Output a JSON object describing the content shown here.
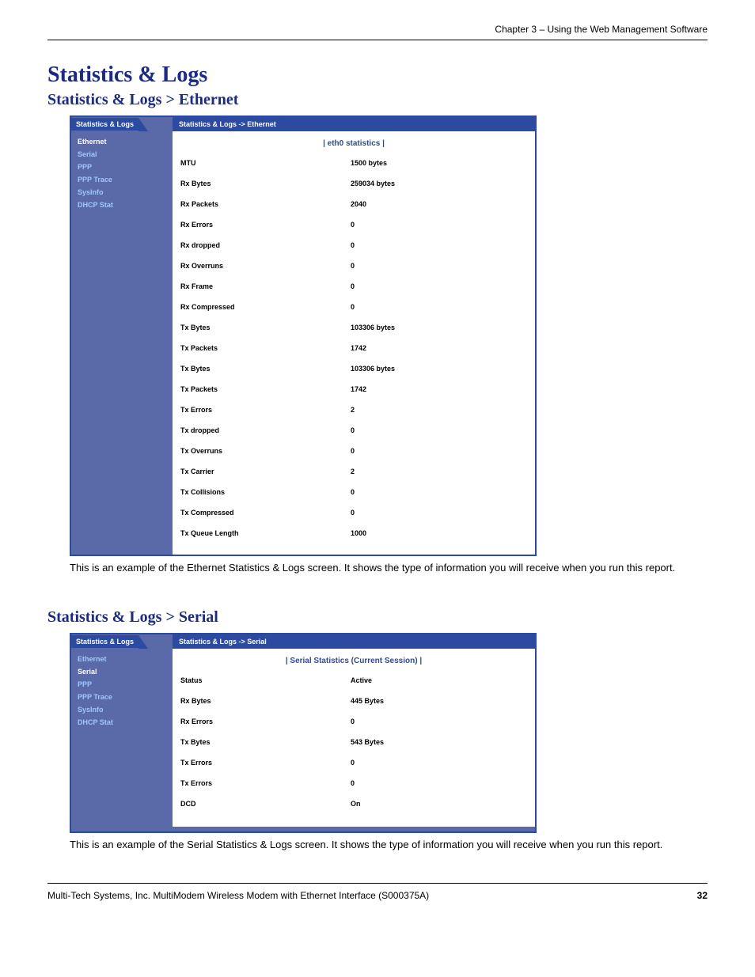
{
  "header": {
    "chapter": "Chapter 3 – Using the Web Management Software"
  },
  "titles": {
    "main": "Statistics & Logs",
    "sub1": "Statistics & Logs > Ethernet",
    "sub2": "Statistics & Logs > Serial"
  },
  "sidebar": {
    "tab": "Statistics & Logs",
    "items": [
      "Ethernet",
      "Serial",
      "PPP",
      "PPP Trace",
      "SysInfo",
      "DHCP Stat"
    ]
  },
  "ethernet_panel": {
    "breadcrumb": "Statistics & Logs  ->  Ethernet",
    "section_title": "| eth0 statistics |",
    "active_index": 0,
    "rows": [
      {
        "label": "MTU",
        "value": "1500 bytes"
      },
      {
        "label": "Rx Bytes",
        "value": "259034 bytes"
      },
      {
        "label": "Rx Packets",
        "value": "2040"
      },
      {
        "label": "Rx Errors",
        "value": "0"
      },
      {
        "label": "Rx dropped",
        "value": "0"
      },
      {
        "label": "Rx Overruns",
        "value": "0"
      },
      {
        "label": "Rx Frame",
        "value": "0"
      },
      {
        "label": "Rx Compressed",
        "value": "0"
      },
      {
        "label": "Tx Bytes",
        "value": "103306 bytes"
      },
      {
        "label": "Tx Packets",
        "value": "1742"
      },
      {
        "label": "Tx Bytes",
        "value": "103306 bytes"
      },
      {
        "label": "Tx Packets",
        "value": "1742"
      },
      {
        "label": "Tx Errors",
        "value": "2"
      },
      {
        "label": "Tx dropped",
        "value": "0"
      },
      {
        "label": "Tx Overruns",
        "value": "0"
      },
      {
        "label": "Tx Carrier",
        "value": "2"
      },
      {
        "label": "Tx Collisions",
        "value": "0"
      },
      {
        "label": "Tx Compressed",
        "value": "0"
      },
      {
        "label": "Tx Queue Length",
        "value": "1000"
      }
    ]
  },
  "serial_panel": {
    "breadcrumb": "Statistics & Logs  ->  Serial",
    "section_title": "| Serial Statistics (Current Session) |",
    "active_index": 1,
    "rows": [
      {
        "label": "Status",
        "value": "Active"
      },
      {
        "label": "Rx Bytes",
        "value": "445 Bytes"
      },
      {
        "label": "Rx Errors",
        "value": "0"
      },
      {
        "label": "Tx Bytes",
        "value": "543 Bytes"
      },
      {
        "label": "Tx Errors",
        "value": "0"
      },
      {
        "label": "Tx Errors",
        "value": "0"
      },
      {
        "label": "DCD",
        "value": "On"
      }
    ]
  },
  "captions": {
    "ethernet": "This is an example of the Ethernet Statistics & Logs screen. It shows the type of information you will receive when you run this report.",
    "serial": "This is an example of the Serial Statistics & Logs screen. It shows the type of information you will receive when you run this report."
  },
  "footer": {
    "text": "Multi-Tech Systems, Inc. MultiModem Wireless Modem with Ethernet Interface (S000375A)",
    "page": "32"
  },
  "colors": {
    "heading": "#1a2a8a",
    "panel_border": "#2b4aa0",
    "sidebar_bg": "#5a6aa8",
    "sidebar_link": "#9ec8ff",
    "breadcrumb_bg": "#2b4aa0"
  }
}
